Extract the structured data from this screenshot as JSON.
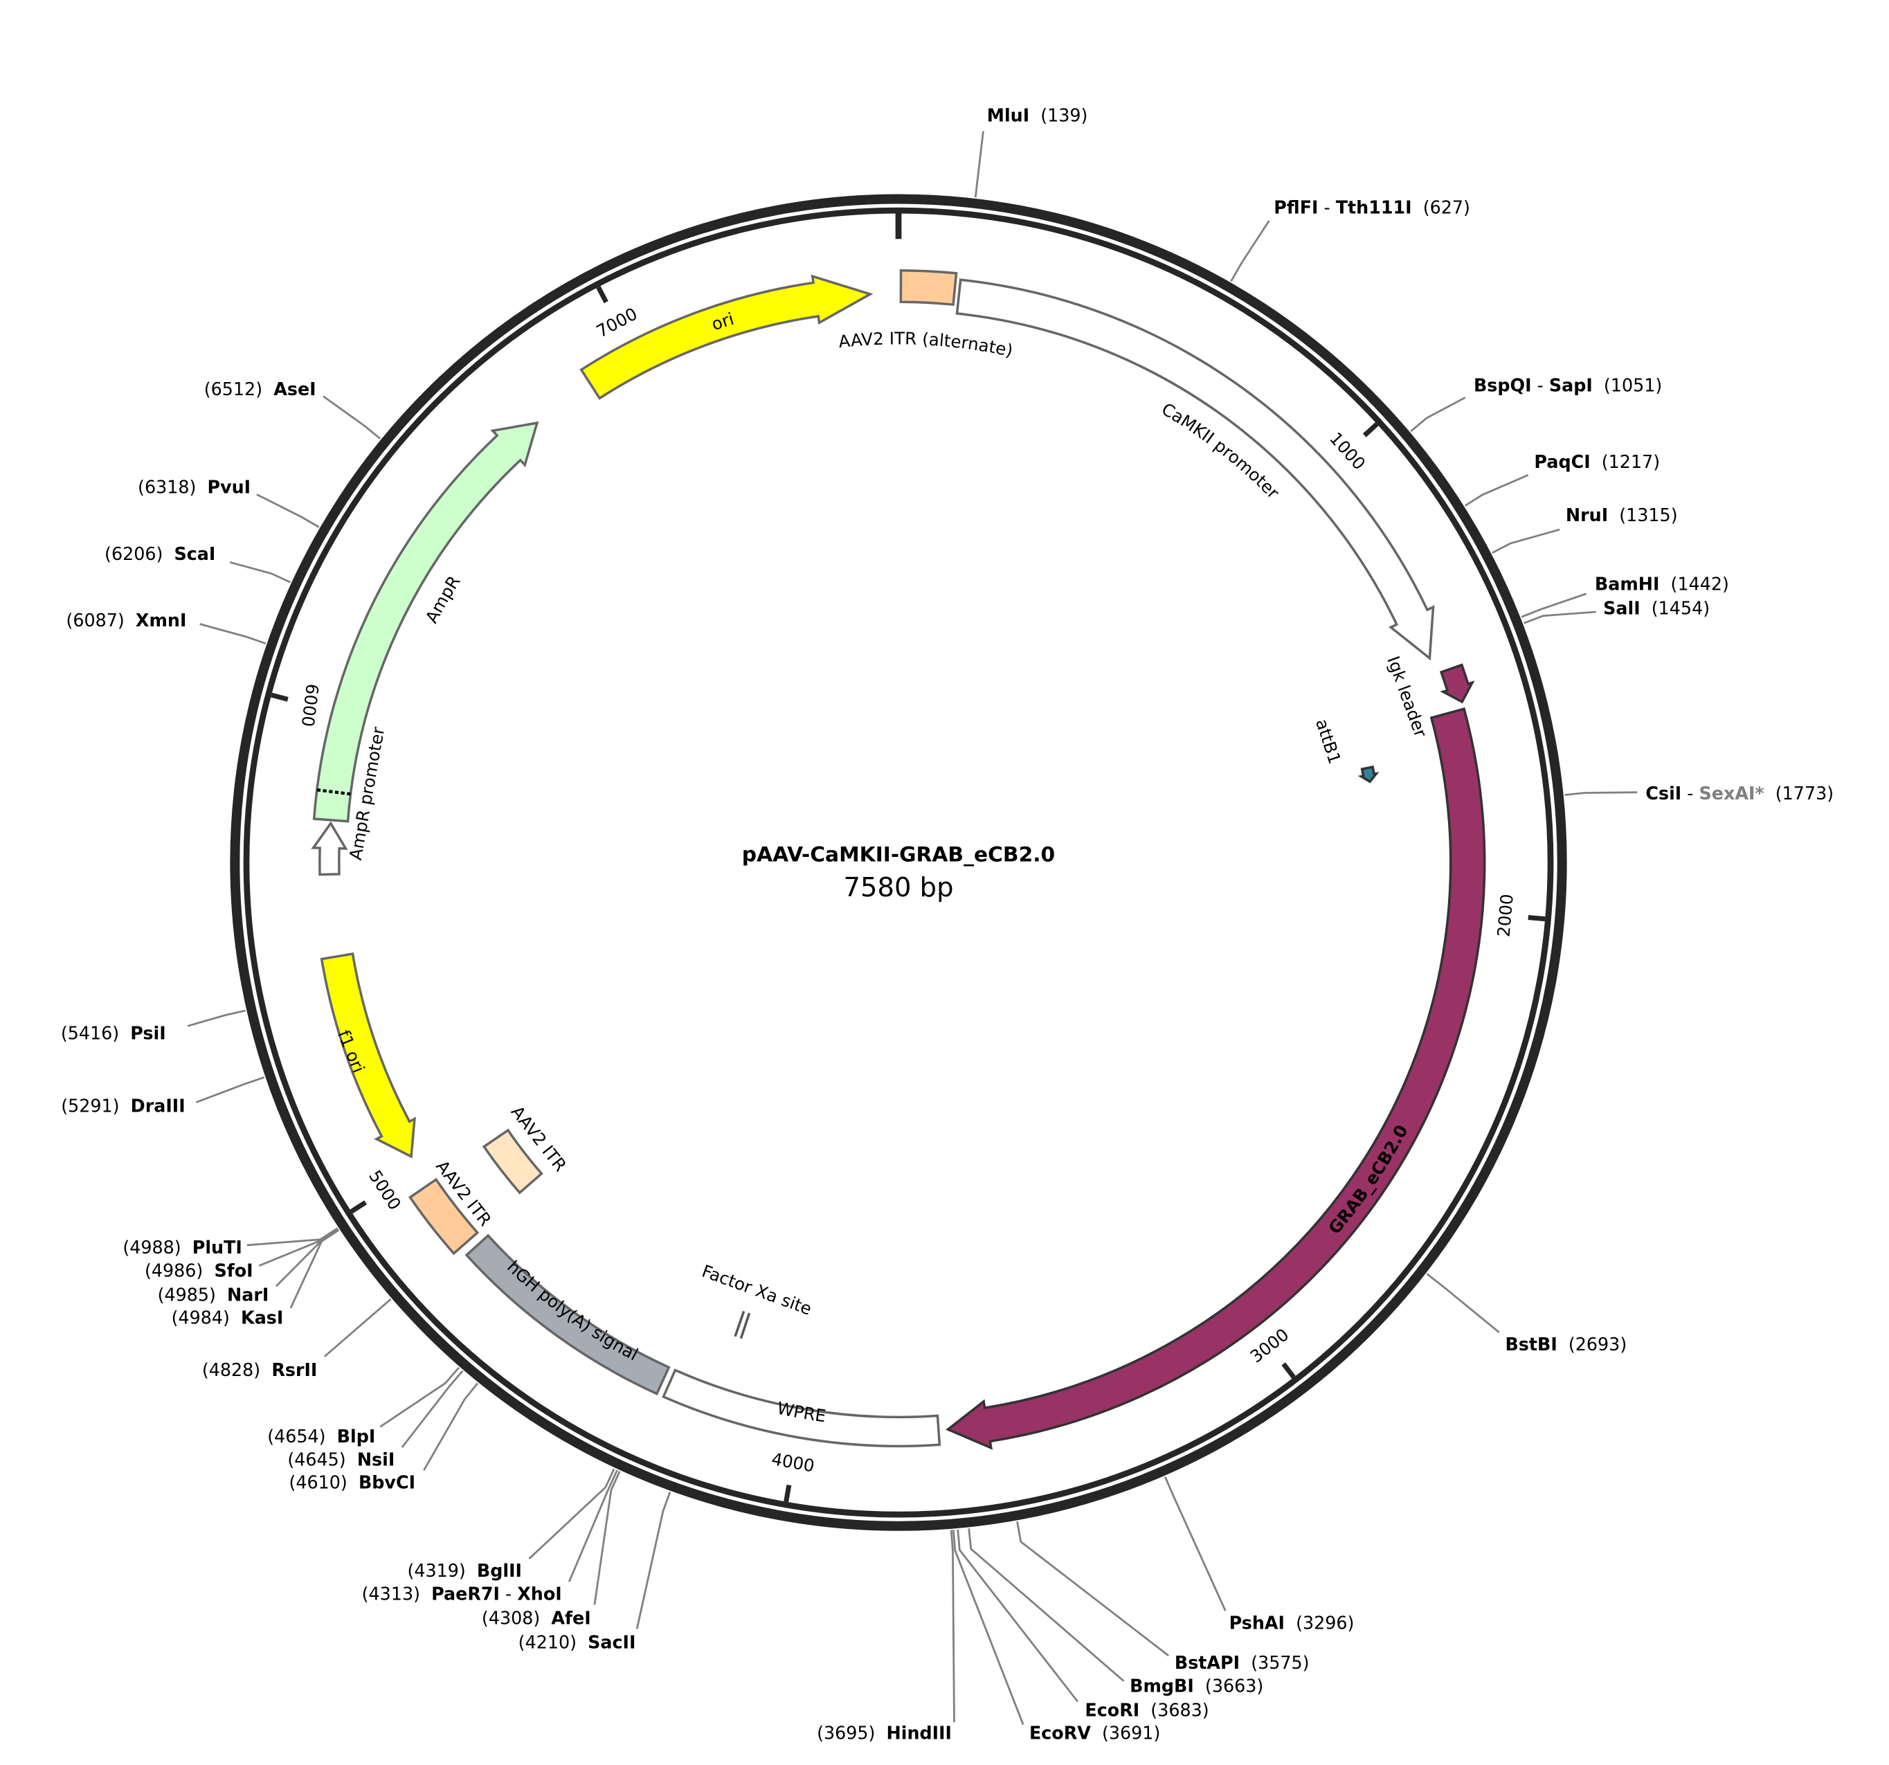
{
  "plasmid": {
    "name": "pAAV-CaMKII-GRAB_eCB2.0",
    "length_label": "7580 bp",
    "length_bp": 7580
  },
  "colors": {
    "backbone": "#262626",
    "yellow": "#ffff00",
    "orange": "#ffcc99",
    "light_orange": "#ffe5c2",
    "purple": "#993366",
    "teal": "#31849b",
    "green": "#ccffcc",
    "gray": "#a6acb3",
    "white": "#ffffff",
    "outline": "#666666",
    "leader_line": "#808080"
  },
  "ticks": [
    {
      "bp": 0,
      "label": ""
    },
    {
      "bp": 1000,
      "label": "1000"
    },
    {
      "bp": 2000,
      "label": "2000"
    },
    {
      "bp": 3000,
      "label": "3000"
    },
    {
      "bp": 4000,
      "label": "4000"
    },
    {
      "bp": 5000,
      "label": "5000"
    },
    {
      "bp": 6000,
      "label": "6000"
    },
    {
      "bp": 7000,
      "label": "7000"
    }
  ],
  "features": [
    {
      "label": "ori",
      "start": 6890,
      "end": 7520,
      "dir": "cw",
      "color": "#ffff00"
    },
    {
      "label": "AAV2 ITR (alternate)",
      "start": 5,
      "end": 118,
      "dir": "none",
      "color": "#ffcc99"
    },
    {
      "label": "CaMKII promoter",
      "start": 128,
      "end": 1452,
      "dir": "cw",
      "color": "#ffffff"
    },
    {
      "label": "Igk leader",
      "start": 1488,
      "end": 1560,
      "dir": "cw",
      "color": "#993366"
    },
    {
      "label": "attB1",
      "start": 1655,
      "end": 1690,
      "dir": "cw",
      "color": "#31849b"
    },
    {
      "label": "GRAB_eCB2.0",
      "start": 1575,
      "end": 3685,
      "dir": "cw",
      "color": "#993366"
    },
    {
      "label": "Factor Xa site",
      "start": 4183,
      "end": 4188,
      "dir": "none",
      "color": "#ffffff"
    },
    {
      "label": "WPRE",
      "start": 3705,
      "end": 4290,
      "dir": "none",
      "color": "#ffffff"
    },
    {
      "label": "hGH poly(A) signal",
      "start": 4305,
      "end": 4795,
      "dir": "none",
      "color": "#a6acb3"
    },
    {
      "label": "AAV2 ITR",
      "start": 4815,
      "end": 4960,
      "dir": "none",
      "color": "#ffcc99"
    },
    {
      "label": "AAV2 ITR",
      "start": 4820,
      "end": 4960,
      "dir": "none",
      "color": "#ffe5c2"
    },
    {
      "label": "f1 ori",
      "start": 5030,
      "end": 5485,
      "dir": "ccw",
      "color": "#ffff00"
    },
    {
      "label": "AmpR promoter",
      "start": 5660,
      "end": 5768,
      "dir": "cw",
      "color": "#ffffff"
    },
    {
      "label": "AmpR",
      "start": 5775,
      "end": 6750,
      "dir": "cw",
      "color": "#ccffcc"
    }
  ],
  "enzymes": [
    {
      "names": [
        {
          "n": "MluI"
        }
      ],
      "pos": 139
    },
    {
      "names": [
        {
          "n": "PflFI"
        },
        {
          "n": "Tth111I"
        }
      ],
      "pos": 627
    },
    {
      "names": [
        {
          "n": "BspQI"
        },
        {
          "n": "SapI"
        }
      ],
      "pos": 1051
    },
    {
      "names": [
        {
          "n": "PaqCI"
        }
      ],
      "pos": 1217
    },
    {
      "names": [
        {
          "n": "NruI"
        }
      ],
      "pos": 1315
    },
    {
      "names": [
        {
          "n": "BamHI"
        }
      ],
      "pos": 1442
    },
    {
      "names": [
        {
          "n": "SalI"
        }
      ],
      "pos": 1454
    },
    {
      "names": [
        {
          "n": "CsiI"
        },
        {
          "n": "SexAI*",
          "muted": true
        }
      ],
      "pos": 1773
    },
    {
      "names": [
        {
          "n": "BstBI"
        }
      ],
      "pos": 2693
    },
    {
      "names": [
        {
          "n": "PshAI"
        }
      ],
      "pos": 3296
    },
    {
      "names": [
        {
          "n": "BstAPI"
        }
      ],
      "pos": 3575
    },
    {
      "names": [
        {
          "n": "BmgBI"
        }
      ],
      "pos": 3663
    },
    {
      "names": [
        {
          "n": "EcoRI"
        }
      ],
      "pos": 3683
    },
    {
      "names": [
        {
          "n": "EcoRV"
        }
      ],
      "pos": 3691
    },
    {
      "names": [
        {
          "n": "HindIII"
        }
      ],
      "pos": 3695
    },
    {
      "names": [
        {
          "n": "SacII"
        }
      ],
      "pos": 4210
    },
    {
      "names": [
        {
          "n": "AfeI"
        }
      ],
      "pos": 4308
    },
    {
      "names": [
        {
          "n": "PaeR7I"
        },
        {
          "n": "XhoI"
        }
      ],
      "pos": 4313
    },
    {
      "names": [
        {
          "n": "BglII"
        }
      ],
      "pos": 4319
    },
    {
      "names": [
        {
          "n": "BbvCI"
        }
      ],
      "pos": 4610
    },
    {
      "names": [
        {
          "n": "NsiI"
        }
      ],
      "pos": 4645
    },
    {
      "names": [
        {
          "n": "BlpI"
        }
      ],
      "pos": 4654
    },
    {
      "names": [
        {
          "n": "RsrII"
        }
      ],
      "pos": 4828
    },
    {
      "names": [
        {
          "n": "PluTI"
        }
      ],
      "pos": 4988
    },
    {
      "names": [
        {
          "n": "SfoI"
        }
      ],
      "pos": 4986
    },
    {
      "names": [
        {
          "n": "NarI"
        }
      ],
      "pos": 4985
    },
    {
      "names": [
        {
          "n": "KasI"
        }
      ],
      "pos": 4984
    },
    {
      "names": [
        {
          "n": "DraIII"
        }
      ],
      "pos": 5291
    },
    {
      "names": [
        {
          "n": "PsiI"
        }
      ],
      "pos": 5416
    },
    {
      "names": [
        {
          "n": "XmnI"
        }
      ],
      "pos": 6087
    },
    {
      "names": [
        {
          "n": "ScaI"
        }
      ],
      "pos": 6206
    },
    {
      "names": [
        {
          "n": "PvuI"
        }
      ],
      "pos": 6318
    },
    {
      "names": [
        {
          "n": "AseI"
        }
      ],
      "pos": 6512
    }
  ]
}
